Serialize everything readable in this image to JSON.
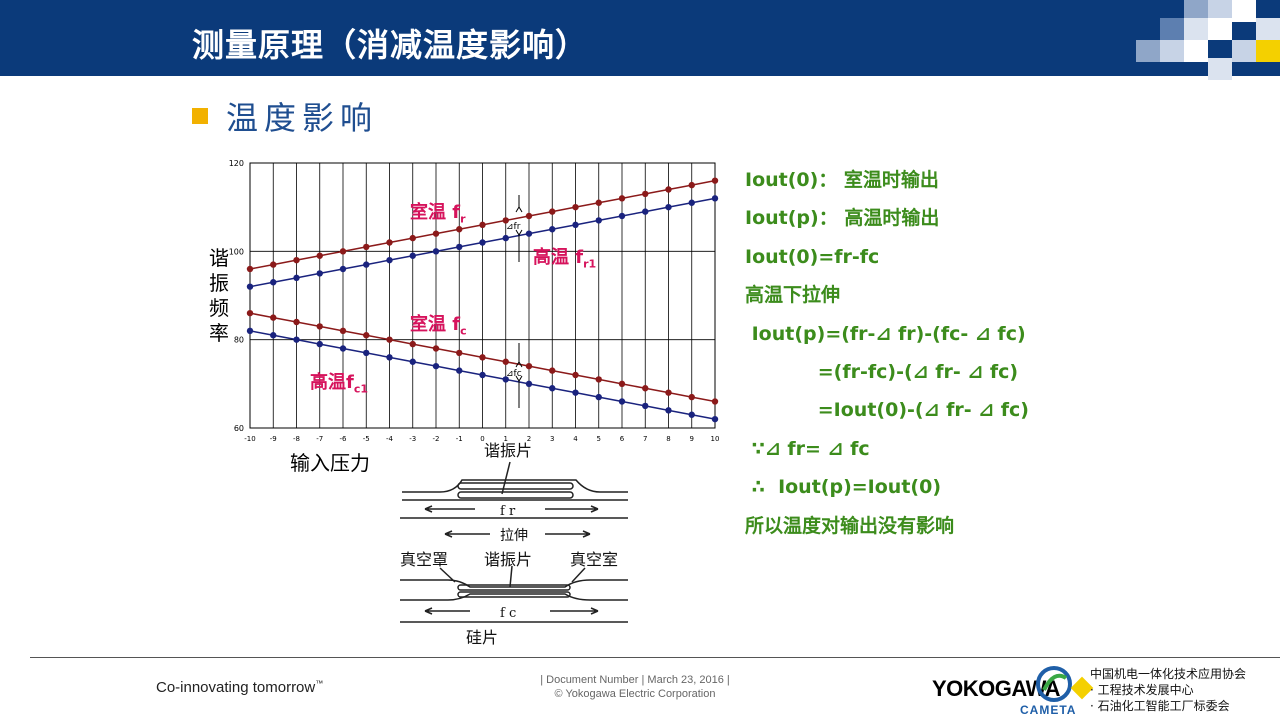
{
  "header": {
    "title": "测量原理（消减温度影响）"
  },
  "section": {
    "title": "温度影响"
  },
  "chart_labels": {
    "ylabel": "谐\n振\n频\n率",
    "xlabel": "输入压力",
    "room_fr": "室温  f",
    "room_fr_sub": "r",
    "high_fr": "高温 f",
    "high_fr_sub": "r1",
    "room_fc": "室温  f",
    "room_fc_sub": "c",
    "high_fc": "高温f",
    "high_fc_sub": "c1",
    "delta_fr": "⊿fr",
    "delta_fc": "⊿fc"
  },
  "schematic": {
    "top_label": "谐振片",
    "fr_label": "f r",
    "stretch_label": "拉伸",
    "vacuum_left": "真空罩",
    "resonator": "谐振片",
    "vacuum_right": "真空室",
    "fc_label": "f c",
    "silicon": "硅片"
  },
  "equations": {
    "l1": "Iout(0)：  室温时输出",
    "l2": "Iout(p)：  高温时输出",
    "l3": "Iout(0)=fr-fc",
    "l4": "高温下拉伸",
    "l5": " Iout(p)=(fr-⊿ fr)-(fc- ⊿ fc)",
    "l6": "           =(fr-fc)-(⊿ fr- ⊿ fc)",
    "l7": "           =Iout(0)-(⊿ fr- ⊿ fc)",
    "l8": " ∵⊿ fr= ⊿ fc",
    "l9": " ∴  Iout(p)=Iout(0)",
    "l10": "所以温度对输出没有影响"
  },
  "footer": {
    "slogan": "Co-innovating tomorrow",
    "tm": "™",
    "doc_line1": "| Document Number | March 23, 2016 |",
    "doc_line2": "© Yokogawa Electric Corporation",
    "brand": "YOKOGAWA",
    "brand_mark": "CAMETA",
    "assoc1": "中国机电一体化技术应用协会",
    "assoc2": "· 工程技术发展中心",
    "assoc3": "· 石油化工智能工厂标委会"
  },
  "chart_data": {
    "type": "line",
    "x": [
      -10,
      -9,
      -8,
      -7,
      -6,
      -5,
      -4,
      -3,
      -2,
      -1,
      0,
      1,
      2,
      3,
      4,
      5,
      6,
      7,
      8,
      9,
      10
    ],
    "xlim": [
      -10,
      10
    ],
    "ylim": [
      60,
      120
    ],
    "yticks": [
      60,
      80,
      100,
      120
    ],
    "grid": true,
    "series": [
      {
        "color": "#8b1a1a",
        "start": 96,
        "end": 116
      },
      {
        "color": "#1a237e",
        "start": 92,
        "end": 112
      },
      {
        "color": "#8b1a1a",
        "start": 86,
        "end": 66
      },
      {
        "color": "#1a237e",
        "start": 82,
        "end": 62
      }
    ]
  },
  "colors": {
    "header": "#0b3a7a",
    "accent": "#f2b100",
    "equation": "#3c8c1c",
    "annotation": "#d6135c"
  }
}
